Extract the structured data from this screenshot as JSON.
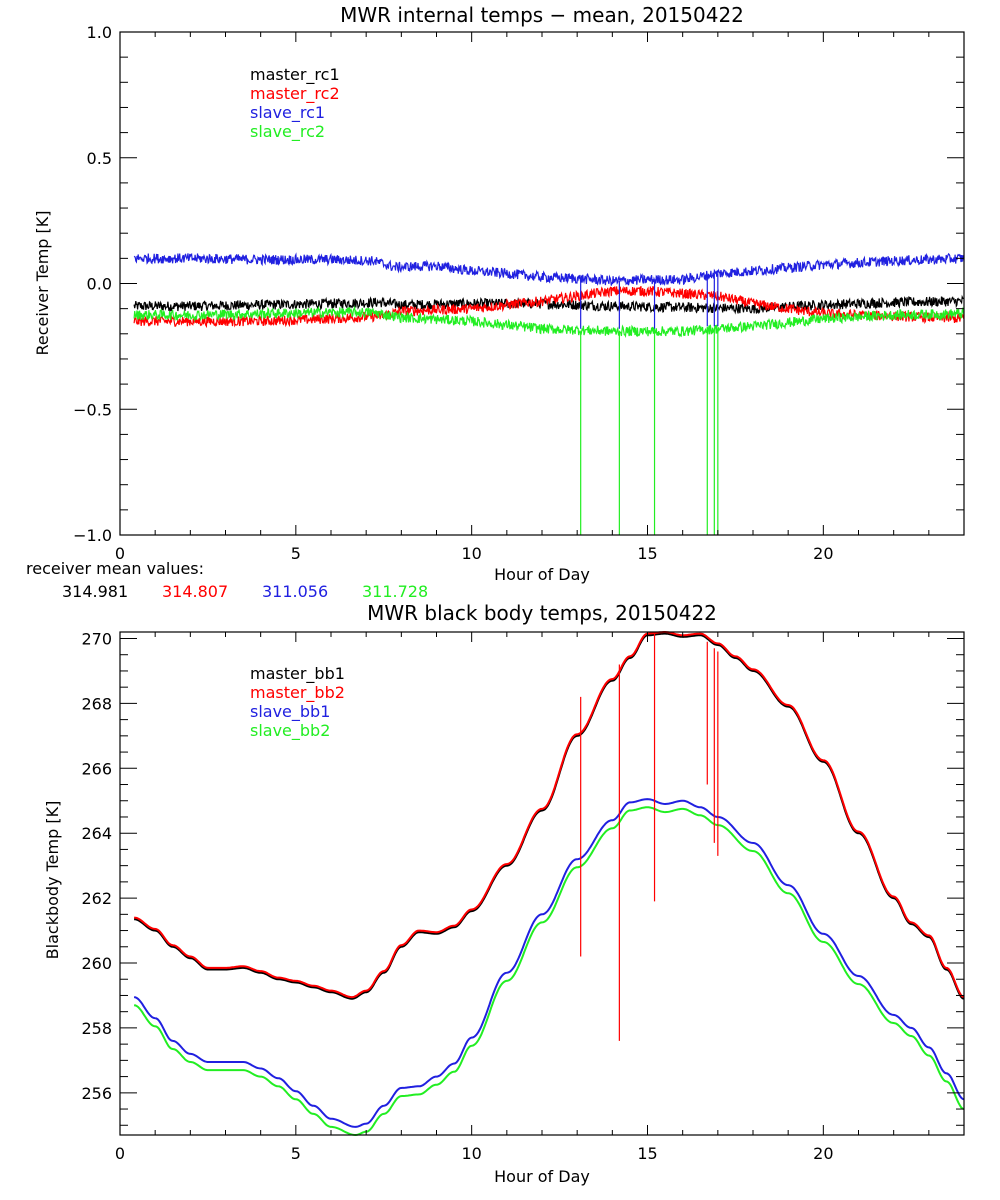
{
  "colors": {
    "master_1": "#000000",
    "master_2": "#ff0000",
    "slave_1": "#2020e0",
    "slave_2": "#22ee22",
    "axis": "#000000"
  },
  "chart_data": [
    {
      "type": "line",
      "title": "MWR internal temps − mean, 20150422",
      "xlabel": "Hour of Day",
      "ylabel": "Receiver Temp [K]",
      "xlim": [
        0,
        24
      ],
      "ylim": [
        -1.0,
        1.0
      ],
      "x_ticks": [
        0,
        5,
        10,
        15,
        20
      ],
      "x_tick_labels": [
        "0",
        "5",
        "10",
        "15",
        "20"
      ],
      "x_minor_step": 1,
      "y_ticks": [
        -1.0,
        -0.5,
        0.0,
        0.5,
        1.0
      ],
      "y_tick_labels": [
        "−1.0",
        "−0.5",
        "0.0",
        "0.5",
        "1.0"
      ],
      "y_minor_step": 0.1,
      "grid": false,
      "legend": {
        "placement": "top-left",
        "entries": [
          "master_rc1",
          "master_rc2",
          "slave_rc1",
          "slave_rc2"
        ]
      },
      "noise_amplitude": 0.02,
      "series": [
        {
          "name": "master_rc1",
          "color_key": "master_1",
          "x": [
            0.4,
            2,
            4,
            6,
            7.4,
            8,
            10,
            12,
            14,
            16,
            18,
            20,
            22,
            24
          ],
          "y": [
            -0.09,
            -0.09,
            -0.085,
            -0.08,
            -0.075,
            -0.085,
            -0.08,
            -0.08,
            -0.09,
            -0.095,
            -0.1,
            -0.085,
            -0.075,
            -0.07
          ]
        },
        {
          "name": "master_rc2",
          "color_key": "master_2",
          "x": [
            0.4,
            2,
            4,
            6,
            7.4,
            8,
            10,
            12,
            13,
            14,
            15,
            16,
            17,
            18,
            20,
            22,
            24
          ],
          "y": [
            -0.15,
            -0.15,
            -0.15,
            -0.14,
            -0.13,
            -0.11,
            -0.1,
            -0.07,
            -0.05,
            -0.03,
            -0.03,
            -0.04,
            -0.05,
            -0.08,
            -0.12,
            -0.13,
            -0.14
          ]
        },
        {
          "name": "slave_rc1",
          "color_key": "slave_1",
          "x": [
            0.4,
            2,
            4,
            6,
            7.2,
            7.8,
            9,
            10,
            11,
            12,
            13,
            14,
            15,
            16,
            17,
            18,
            20,
            22,
            24
          ],
          "y": [
            0.1,
            0.1,
            0.095,
            0.095,
            0.09,
            0.065,
            0.07,
            0.05,
            0.04,
            0.025,
            0.02,
            0.01,
            0.015,
            0.015,
            0.04,
            0.05,
            0.075,
            0.09,
            0.1
          ]
        },
        {
          "name": "slave_rc2",
          "color_key": "slave_2",
          "x": [
            0.4,
            2,
            4,
            6,
            7.2,
            8,
            10,
            12,
            14,
            16,
            17,
            18,
            20,
            22,
            24
          ],
          "y": [
            -0.125,
            -0.125,
            -0.12,
            -0.115,
            -0.115,
            -0.135,
            -0.15,
            -0.18,
            -0.19,
            -0.19,
            -0.18,
            -0.17,
            -0.14,
            -0.125,
            -0.12
          ]
        }
      ],
      "spikes": [
        {
          "x": 13.1,
          "from": -0.19,
          "to": -1.0,
          "color_key": "slave_2"
        },
        {
          "x": 14.2,
          "from": -0.19,
          "to": -1.0,
          "color_key": "slave_2"
        },
        {
          "x": 15.2,
          "from": -0.19,
          "to": -1.0,
          "color_key": "slave_2"
        },
        {
          "x": 16.7,
          "from": -0.18,
          "to": -1.0,
          "color_key": "slave_2"
        },
        {
          "x": 16.9,
          "from": -0.18,
          "to": -1.0,
          "color_key": "slave_2"
        },
        {
          "x": 17.0,
          "from": -0.18,
          "to": -1.0,
          "color_key": "slave_2"
        },
        {
          "x": 13.1,
          "from": 0.02,
          "to": -0.18,
          "color_key": "slave_1"
        },
        {
          "x": 14.2,
          "from": 0.01,
          "to": -0.18,
          "color_key": "slave_1"
        },
        {
          "x": 15.2,
          "from": 0.015,
          "to": -0.18,
          "color_key": "slave_1"
        },
        {
          "x": 16.7,
          "from": 0.035,
          "to": -0.17,
          "color_key": "slave_1"
        },
        {
          "x": 16.9,
          "from": 0.04,
          "to": -0.17,
          "color_key": "slave_1"
        },
        {
          "x": 17.0,
          "from": 0.04,
          "to": -0.17,
          "color_key": "slave_1"
        }
      ],
      "footer": {
        "label": "receiver mean values:",
        "values": [
          {
            "value": "314.981",
            "color_key": "master_1"
          },
          {
            "value": "314.807",
            "color_key": "master_2"
          },
          {
            "value": "311.056",
            "color_key": "slave_1"
          },
          {
            "value": "311.728",
            "color_key": "slave_2"
          }
        ]
      }
    },
    {
      "type": "line",
      "title": "MWR black body temps, 20150422",
      "xlabel": "Hour of Day",
      "ylabel": "Blackbody Temp [K]",
      "xlim": [
        0,
        24
      ],
      "ylim": [
        254.7,
        270.2
      ],
      "x_ticks": [
        0,
        5,
        10,
        15,
        20
      ],
      "x_tick_labels": [
        "0",
        "5",
        "10",
        "15",
        "20"
      ],
      "x_minor_step": 1,
      "y_ticks": [
        256,
        258,
        260,
        262,
        264,
        266,
        268,
        270
      ],
      "y_tick_labels": [
        "256",
        "258",
        "260",
        "262",
        "264",
        "266",
        "268",
        "270"
      ],
      "y_minor_step": 0.5,
      "grid": false,
      "legend": {
        "placement": "top-left",
        "entries": [
          "master_bb1",
          "master_bb2",
          "slave_bb1",
          "slave_bb2"
        ]
      },
      "series": [
        {
          "name": "master_bb1",
          "color_key": "master_1",
          "x": [
            0.4,
            1,
            1.5,
            2,
            2.5,
            3,
            3.5,
            4,
            4.5,
            5,
            5.5,
            6,
            6.6,
            7,
            7.5,
            8,
            8.5,
            9,
            9.5,
            10,
            11,
            12,
            13,
            14,
            14.5,
            15,
            15.5,
            16,
            16.5,
            17,
            17.5,
            18,
            19,
            20,
            21,
            22,
            22.5,
            23,
            23.5,
            24
          ],
          "y": [
            261.35,
            261.0,
            260.5,
            260.15,
            259.8,
            259.8,
            259.85,
            259.7,
            259.5,
            259.4,
            259.25,
            259.1,
            258.9,
            259.1,
            259.7,
            260.5,
            260.95,
            260.9,
            261.1,
            261.6,
            263.0,
            264.7,
            267.0,
            268.7,
            269.4,
            270.1,
            270.15,
            270.05,
            270.1,
            269.8,
            269.4,
            269.0,
            267.9,
            266.2,
            264.0,
            262.0,
            261.2,
            260.8,
            259.8,
            258.9
          ]
        },
        {
          "name": "master_bb2",
          "color_key": "master_2",
          "x": [
            0.4,
            1,
            1.5,
            2,
            2.5,
            3,
            3.5,
            4,
            4.5,
            5,
            5.5,
            6,
            6.6,
            7,
            7.5,
            8,
            8.5,
            9,
            9.5,
            10,
            11,
            12,
            13,
            14,
            14.5,
            15,
            15.5,
            16,
            16.5,
            17,
            17.5,
            18,
            19,
            20,
            21,
            22,
            22.5,
            23,
            23.5,
            24
          ],
          "y": [
            261.4,
            261.05,
            260.55,
            260.2,
            259.85,
            259.85,
            259.9,
            259.75,
            259.55,
            259.45,
            259.3,
            259.15,
            258.95,
            259.15,
            259.75,
            260.55,
            261.0,
            260.95,
            261.15,
            261.65,
            263.05,
            264.75,
            267.05,
            268.75,
            269.45,
            270.15,
            270.2,
            270.1,
            270.15,
            269.85,
            269.45,
            269.05,
            267.95,
            266.25,
            264.05,
            262.05,
            261.25,
            260.85,
            259.85,
            258.95
          ]
        },
        {
          "name": "slave_bb1",
          "color_key": "slave_1",
          "x": [
            0.4,
            1,
            1.5,
            2,
            2.5,
            3,
            3.5,
            4,
            4.5,
            5,
            5.5,
            6,
            6.7,
            7,
            7.5,
            8,
            8.5,
            9,
            9.5,
            10,
            11,
            12,
            13,
            14,
            14.5,
            15,
            15.5,
            16,
            16.5,
            17,
            18,
            19,
            20,
            21,
            22,
            22.5,
            23,
            23.5,
            24
          ],
          "y": [
            258.95,
            258.3,
            257.6,
            257.2,
            256.95,
            256.95,
            256.95,
            256.75,
            256.45,
            256.05,
            255.6,
            255.2,
            254.95,
            255.05,
            255.6,
            256.15,
            256.2,
            256.5,
            256.9,
            257.7,
            259.7,
            261.5,
            263.2,
            264.4,
            264.95,
            265.05,
            264.9,
            265.0,
            264.8,
            264.5,
            263.7,
            262.4,
            260.9,
            259.6,
            258.4,
            258.0,
            257.4,
            256.6,
            255.8
          ]
        },
        {
          "name": "slave_bb2",
          "color_key": "slave_2",
          "x": [
            0.4,
            1,
            1.5,
            2,
            2.5,
            3,
            3.5,
            4,
            4.5,
            5,
            5.5,
            6,
            6.7,
            7,
            7.5,
            8,
            8.5,
            9,
            9.5,
            10,
            11,
            12,
            13,
            14,
            14.5,
            15,
            15.5,
            16,
            16.5,
            17,
            18,
            19,
            20,
            21,
            22,
            22.5,
            23,
            23.5,
            24
          ],
          "y": [
            258.7,
            258.05,
            257.35,
            256.95,
            256.7,
            256.7,
            256.7,
            256.5,
            256.2,
            255.8,
            255.35,
            254.95,
            254.7,
            254.8,
            255.35,
            255.9,
            255.95,
            256.25,
            256.65,
            257.45,
            259.45,
            261.25,
            262.95,
            264.15,
            264.7,
            264.8,
            264.65,
            264.75,
            264.55,
            264.25,
            263.45,
            262.15,
            260.65,
            259.35,
            258.15,
            257.75,
            257.15,
            256.35,
            255.5
          ]
        }
      ],
      "spikes": [
        {
          "x": 13.1,
          "from": 268.2,
          "to": 260.2,
          "color_key": "master_2"
        },
        {
          "x": 14.2,
          "from": 269.2,
          "to": 257.6,
          "color_key": "master_2"
        },
        {
          "x": 15.2,
          "from": 270.2,
          "to": 261.9,
          "color_key": "master_2"
        },
        {
          "x": 16.7,
          "from": 269.9,
          "to": 265.5,
          "color_key": "master_2"
        },
        {
          "x": 16.9,
          "from": 269.7,
          "to": 263.7,
          "color_key": "master_2"
        },
        {
          "x": 17.0,
          "from": 269.6,
          "to": 263.3,
          "color_key": "master_2"
        }
      ]
    }
  ]
}
